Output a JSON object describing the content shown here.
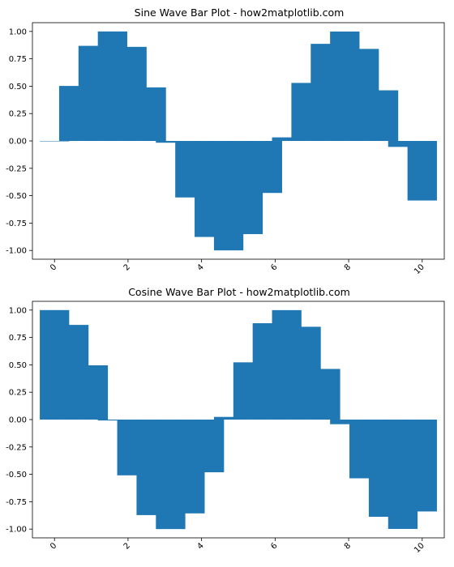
{
  "chart_data": [
    {
      "type": "bar",
      "title": "Sine Wave Bar Plot - how2matplotlib.com",
      "xlabel": "",
      "ylabel": "",
      "color": "#1f77b4",
      "x": [
        0.0,
        0.5263,
        1.0526,
        1.5789,
        2.1053,
        2.6316,
        3.1579,
        3.6842,
        4.2105,
        4.7368,
        5.2632,
        5.7895,
        6.3158,
        6.8421,
        7.3684,
        7.8947,
        8.4211,
        8.9474,
        9.4737,
        10.0
      ],
      "values": [
        0.0,
        0.5023,
        0.8685,
        0.9999,
        0.8593,
        0.4891,
        -0.0163,
        -0.516,
        -0.8769,
        -0.9996,
        -0.851,
        -0.4749,
        0.0326,
        0.5299,
        0.8867,
        0.9992,
        0.8405,
        0.4622,
        -0.0543,
        -0.544
      ],
      "xlim": [
        -0.6,
        10.6
      ],
      "ylim": [
        -1.08,
        1.08
      ],
      "xticks": [
        0,
        2,
        4,
        6,
        8,
        10
      ],
      "xtick_labels": [
        "0",
        "2",
        "4",
        "6",
        "8",
        "10"
      ],
      "yticks": [
        1.0,
        0.75,
        0.5,
        0.25,
        0.0,
        -0.25,
        -0.5,
        -0.75,
        -1.0
      ],
      "ytick_labels": [
        "1.00",
        "0.75",
        "0.50",
        "0.25",
        "0.00",
        "-0.25",
        "-0.50",
        "-0.75",
        "-1.00"
      ],
      "grid": false
    },
    {
      "type": "bar",
      "title": "Cosine Wave Bar Plot - how2matplotlib.com",
      "xlabel": "",
      "ylabel": "",
      "color": "#1f77b4",
      "x": [
        0.0,
        0.5263,
        1.0526,
        1.5789,
        2.1053,
        2.6316,
        3.1579,
        3.6842,
        4.2105,
        4.7368,
        5.2632,
        5.7895,
        6.3158,
        6.8421,
        7.3684,
        7.8947,
        8.4211,
        8.9474,
        9.4737,
        10.0
      ],
      "values": [
        1.0,
        0.8646,
        0.4954,
        -0.0081,
        -0.5092,
        -0.8723,
        -0.9999,
        -0.8566,
        -0.4812,
        0.0244,
        0.5227,
        0.88,
        0.9995,
        0.8476,
        0.4626,
        -0.0422,
        -0.5363,
        -0.8876,
        -0.9985,
        -0.8391
      ],
      "xlim": [
        -0.6,
        10.6
      ],
      "ylim": [
        -1.08,
        1.08
      ],
      "xticks": [
        0,
        2,
        4,
        6,
        8,
        10
      ],
      "xtick_labels": [
        "0",
        "2",
        "4",
        "6",
        "8",
        "10"
      ],
      "yticks": [
        1.0,
        0.75,
        0.5,
        0.25,
        0.0,
        -0.25,
        -0.5,
        -0.75,
        -1.0
      ],
      "ytick_labels": [
        "1.00",
        "0.75",
        "0.50",
        "0.25",
        "0.00",
        "-0.25",
        "-0.50",
        "-0.75",
        "-1.00"
      ],
      "grid": false
    }
  ]
}
